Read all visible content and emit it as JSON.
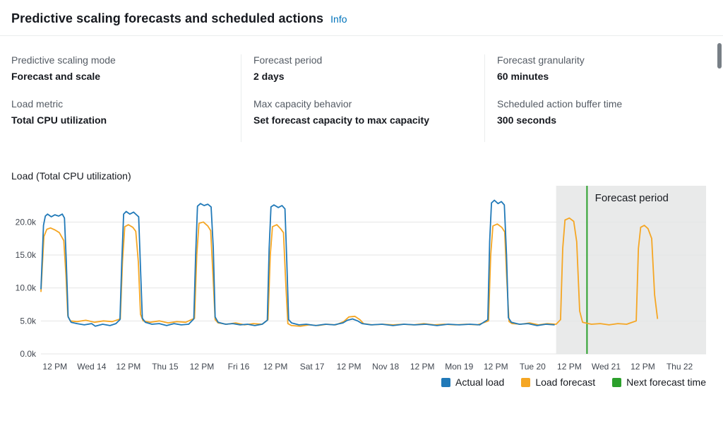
{
  "header": {
    "title": "Predictive scaling forecasts and scheduled actions",
    "info_link": "Info"
  },
  "panel": {
    "columns": [
      [
        {
          "label": "Predictive scaling mode",
          "value": "Forecast and scale"
        },
        {
          "label": "Load metric",
          "value": "Total CPU utilization"
        }
      ],
      [
        {
          "label": "Forecast period",
          "value": "2 days"
        },
        {
          "label": "Max capacity behavior",
          "value": "Set forecast capacity to max capacity"
        }
      ],
      [
        {
          "label": "Forecast granularity",
          "value": "60 minutes"
        },
        {
          "label": "Scheduled action buffer time",
          "value": "300 seconds"
        }
      ]
    ]
  },
  "chart_data": {
    "type": "line",
    "title": "Load (Total CPU utilization)",
    "x_unit": "days since Nov 13 00:00",
    "xlim": [
      0.31,
      9.36
    ],
    "ylim": [
      0,
      24
    ],
    "grid": true,
    "y_ticks": [
      {
        "v": 0,
        "label": "0.0k"
      },
      {
        "v": 5,
        "label": "5.0k"
      },
      {
        "v": 10,
        "label": "10.0k"
      },
      {
        "v": 15,
        "label": "15.0k"
      },
      {
        "v": 20,
        "label": "20.0k"
      }
    ],
    "x_ticks": [
      {
        "v": 0.5,
        "label": "12 PM"
      },
      {
        "v": 1.0,
        "label": "Wed 14"
      },
      {
        "v": 1.5,
        "label": "12 PM"
      },
      {
        "v": 2.0,
        "label": "Thu 15"
      },
      {
        "v": 2.5,
        "label": "12 PM"
      },
      {
        "v": 3.0,
        "label": "Fri 16"
      },
      {
        "v": 3.5,
        "label": "12 PM"
      },
      {
        "v": 4.0,
        "label": "Sat 17"
      },
      {
        "v": 4.5,
        "label": "12 PM"
      },
      {
        "v": 5.0,
        "label": "Nov 18"
      },
      {
        "v": 5.5,
        "label": "12 PM"
      },
      {
        "v": 6.0,
        "label": "Mon 19"
      },
      {
        "v": 6.5,
        "label": "12 PM"
      },
      {
        "v": 7.0,
        "label": "Tue 20"
      },
      {
        "v": 7.5,
        "label": "12 PM"
      },
      {
        "v": 8.0,
        "label": "Wed 21"
      },
      {
        "v": 8.5,
        "label": "12 PM"
      },
      {
        "v": 9.0,
        "label": "Thu 22"
      }
    ],
    "forecast_region": {
      "start": 7.32,
      "end": 9.36,
      "label": "Forecast period",
      "fill": "#e9eaea"
    },
    "next_forecast_line": {
      "x": 7.74,
      "color": "#2ca02c"
    },
    "series": [
      {
        "name": "Actual load",
        "color": "#2079b8",
        "points": [
          [
            0.31,
            9.8
          ],
          [
            0.345,
            19.5
          ],
          [
            0.37,
            20.9
          ],
          [
            0.4,
            21.2
          ],
          [
            0.45,
            20.8
          ],
          [
            0.5,
            21.1
          ],
          [
            0.55,
            20.9
          ],
          [
            0.6,
            21.2
          ],
          [
            0.63,
            20.6
          ],
          [
            0.655,
            14.0
          ],
          [
            0.68,
            5.6
          ],
          [
            0.72,
            4.8
          ],
          [
            0.8,
            4.6
          ],
          [
            0.9,
            4.4
          ],
          [
            1.0,
            4.6
          ],
          [
            1.05,
            4.2
          ],
          [
            1.15,
            4.5
          ],
          [
            1.25,
            4.3
          ],
          [
            1.33,
            4.6
          ],
          [
            1.385,
            5.2
          ],
          [
            1.41,
            14.0
          ],
          [
            1.435,
            21.2
          ],
          [
            1.47,
            21.6
          ],
          [
            1.52,
            21.2
          ],
          [
            1.57,
            21.5
          ],
          [
            1.61,
            21.1
          ],
          [
            1.64,
            20.8
          ],
          [
            1.665,
            13.0
          ],
          [
            1.69,
            5.4
          ],
          [
            1.73,
            4.8
          ],
          [
            1.82,
            4.5
          ],
          [
            1.92,
            4.6
          ],
          [
            2.02,
            4.3
          ],
          [
            2.12,
            4.6
          ],
          [
            2.22,
            4.4
          ],
          [
            2.32,
            4.5
          ],
          [
            2.39,
            5.3
          ],
          [
            2.415,
            15.0
          ],
          [
            2.44,
            22.4
          ],
          [
            2.48,
            22.8
          ],
          [
            2.53,
            22.5
          ],
          [
            2.58,
            22.7
          ],
          [
            2.625,
            22.3
          ],
          [
            2.655,
            16.0
          ],
          [
            2.68,
            5.6
          ],
          [
            2.72,
            4.8
          ],
          [
            2.82,
            4.5
          ],
          [
            2.92,
            4.6
          ],
          [
            3.02,
            4.4
          ],
          [
            3.12,
            4.5
          ],
          [
            3.22,
            4.3
          ],
          [
            3.32,
            4.5
          ],
          [
            3.39,
            5.1
          ],
          [
            3.415,
            16.0
          ],
          [
            3.44,
            22.3
          ],
          [
            3.48,
            22.6
          ],
          [
            3.54,
            22.2
          ],
          [
            3.59,
            22.5
          ],
          [
            3.63,
            22.0
          ],
          [
            3.655,
            14.0
          ],
          [
            3.68,
            5.2
          ],
          [
            3.72,
            4.7
          ],
          [
            3.82,
            4.4
          ],
          [
            3.92,
            4.5
          ],
          [
            4.05,
            4.3
          ],
          [
            4.18,
            4.5
          ],
          [
            4.3,
            4.4
          ],
          [
            4.42,
            4.7
          ],
          [
            4.48,
            5.1
          ],
          [
            4.55,
            5.3
          ],
          [
            4.62,
            5.0
          ],
          [
            4.68,
            4.6
          ],
          [
            4.8,
            4.4
          ],
          [
            4.95,
            4.5
          ],
          [
            5.1,
            4.3
          ],
          [
            5.25,
            4.5
          ],
          [
            5.4,
            4.4
          ],
          [
            5.55,
            4.5
          ],
          [
            5.7,
            4.3
          ],
          [
            5.85,
            4.5
          ],
          [
            6.0,
            4.4
          ],
          [
            6.15,
            4.5
          ],
          [
            6.28,
            4.4
          ],
          [
            6.39,
            5.2
          ],
          [
            6.415,
            17.0
          ],
          [
            6.44,
            22.9
          ],
          [
            6.48,
            23.3
          ],
          [
            6.53,
            22.8
          ],
          [
            6.575,
            23.1
          ],
          [
            6.615,
            22.6
          ],
          [
            6.645,
            15.0
          ],
          [
            6.67,
            5.5
          ],
          [
            6.71,
            4.8
          ],
          [
            6.82,
            4.5
          ],
          [
            6.94,
            4.6
          ],
          [
            7.06,
            4.3
          ],
          [
            7.18,
            4.5
          ],
          [
            7.3,
            4.4
          ]
        ]
      },
      {
        "name": "Load forecast",
        "color": "#f5a623",
        "points": [
          [
            0.31,
            9.4
          ],
          [
            0.35,
            17.8
          ],
          [
            0.39,
            18.9
          ],
          [
            0.44,
            19.1
          ],
          [
            0.5,
            18.8
          ],
          [
            0.56,
            18.4
          ],
          [
            0.62,
            17.2
          ],
          [
            0.65,
            12.0
          ],
          [
            0.675,
            5.8
          ],
          [
            0.71,
            5.0
          ],
          [
            0.8,
            4.9
          ],
          [
            0.92,
            5.1
          ],
          [
            1.04,
            4.8
          ],
          [
            1.16,
            5.0
          ],
          [
            1.28,
            4.9
          ],
          [
            1.39,
            5.3
          ],
          [
            1.42,
            14.0
          ],
          [
            1.45,
            19.3
          ],
          [
            1.5,
            19.6
          ],
          [
            1.56,
            19.2
          ],
          [
            1.6,
            18.6
          ],
          [
            1.635,
            14.0
          ],
          [
            1.665,
            6.0
          ],
          [
            1.7,
            5.0
          ],
          [
            1.8,
            4.8
          ],
          [
            1.92,
            5.0
          ],
          [
            2.04,
            4.7
          ],
          [
            2.16,
            4.9
          ],
          [
            2.28,
            4.8
          ],
          [
            2.4,
            5.4
          ],
          [
            2.43,
            15.0
          ],
          [
            2.46,
            19.8
          ],
          [
            2.52,
            20.0
          ],
          [
            2.58,
            19.4
          ],
          [
            2.62,
            18.7
          ],
          [
            2.65,
            12.0
          ],
          [
            2.68,
            5.2
          ],
          [
            2.72,
            4.7
          ],
          [
            2.84,
            4.5
          ],
          [
            2.96,
            4.7
          ],
          [
            3.08,
            4.4
          ],
          [
            3.2,
            4.6
          ],
          [
            3.32,
            4.5
          ],
          [
            3.4,
            5.2
          ],
          [
            3.43,
            15.0
          ],
          [
            3.46,
            19.3
          ],
          [
            3.52,
            19.6
          ],
          [
            3.57,
            19.0
          ],
          [
            3.61,
            18.4
          ],
          [
            3.64,
            11.0
          ],
          [
            3.67,
            4.6
          ],
          [
            3.72,
            4.3
          ],
          [
            3.84,
            4.2
          ],
          [
            3.96,
            4.4
          ],
          [
            4.08,
            4.3
          ],
          [
            4.2,
            4.5
          ],
          [
            4.32,
            4.4
          ],
          [
            4.43,
            4.9
          ],
          [
            4.5,
            5.6
          ],
          [
            4.58,
            5.7
          ],
          [
            4.65,
            5.2
          ],
          [
            4.7,
            4.6
          ],
          [
            4.82,
            4.4
          ],
          [
            4.96,
            4.5
          ],
          [
            5.1,
            4.4
          ],
          [
            5.24,
            4.5
          ],
          [
            5.38,
            4.4
          ],
          [
            5.52,
            4.6
          ],
          [
            5.66,
            4.4
          ],
          [
            5.8,
            4.5
          ],
          [
            5.95,
            4.4
          ],
          [
            6.1,
            4.5
          ],
          [
            6.25,
            4.4
          ],
          [
            6.4,
            5.0
          ],
          [
            6.43,
            15.0
          ],
          [
            6.46,
            19.4
          ],
          [
            6.52,
            19.7
          ],
          [
            6.58,
            19.2
          ],
          [
            6.62,
            18.5
          ],
          [
            6.65,
            11.0
          ],
          [
            6.68,
            4.9
          ],
          [
            6.72,
            4.6
          ],
          [
            6.84,
            4.5
          ],
          [
            6.96,
            4.7
          ],
          [
            7.08,
            4.4
          ],
          [
            7.2,
            4.6
          ],
          [
            7.32,
            4.5
          ],
          [
            7.38,
            5.2
          ],
          [
            7.41,
            16.0
          ],
          [
            7.44,
            20.3
          ],
          [
            7.5,
            20.6
          ],
          [
            7.56,
            20.1
          ],
          [
            7.6,
            17.0
          ],
          [
            7.64,
            6.5
          ],
          [
            7.68,
            4.8
          ],
          [
            7.8,
            4.5
          ],
          [
            7.92,
            4.6
          ],
          [
            8.04,
            4.4
          ],
          [
            8.16,
            4.6
          ],
          [
            8.28,
            4.5
          ],
          [
            8.41,
            5.0
          ],
          [
            8.44,
            16.0
          ],
          [
            8.47,
            19.2
          ],
          [
            8.52,
            19.5
          ],
          [
            8.57,
            19.0
          ],
          [
            8.62,
            17.5
          ],
          [
            8.66,
            9.0
          ],
          [
            8.7,
            5.3
          ]
        ]
      }
    ],
    "legend_position": "bottom-right",
    "legend": [
      {
        "label": "Actual load",
        "color": "#2079b8"
      },
      {
        "label": "Load forecast",
        "color": "#f5a623"
      },
      {
        "label": "Next forecast time",
        "color": "#2ca02c"
      }
    ]
  }
}
